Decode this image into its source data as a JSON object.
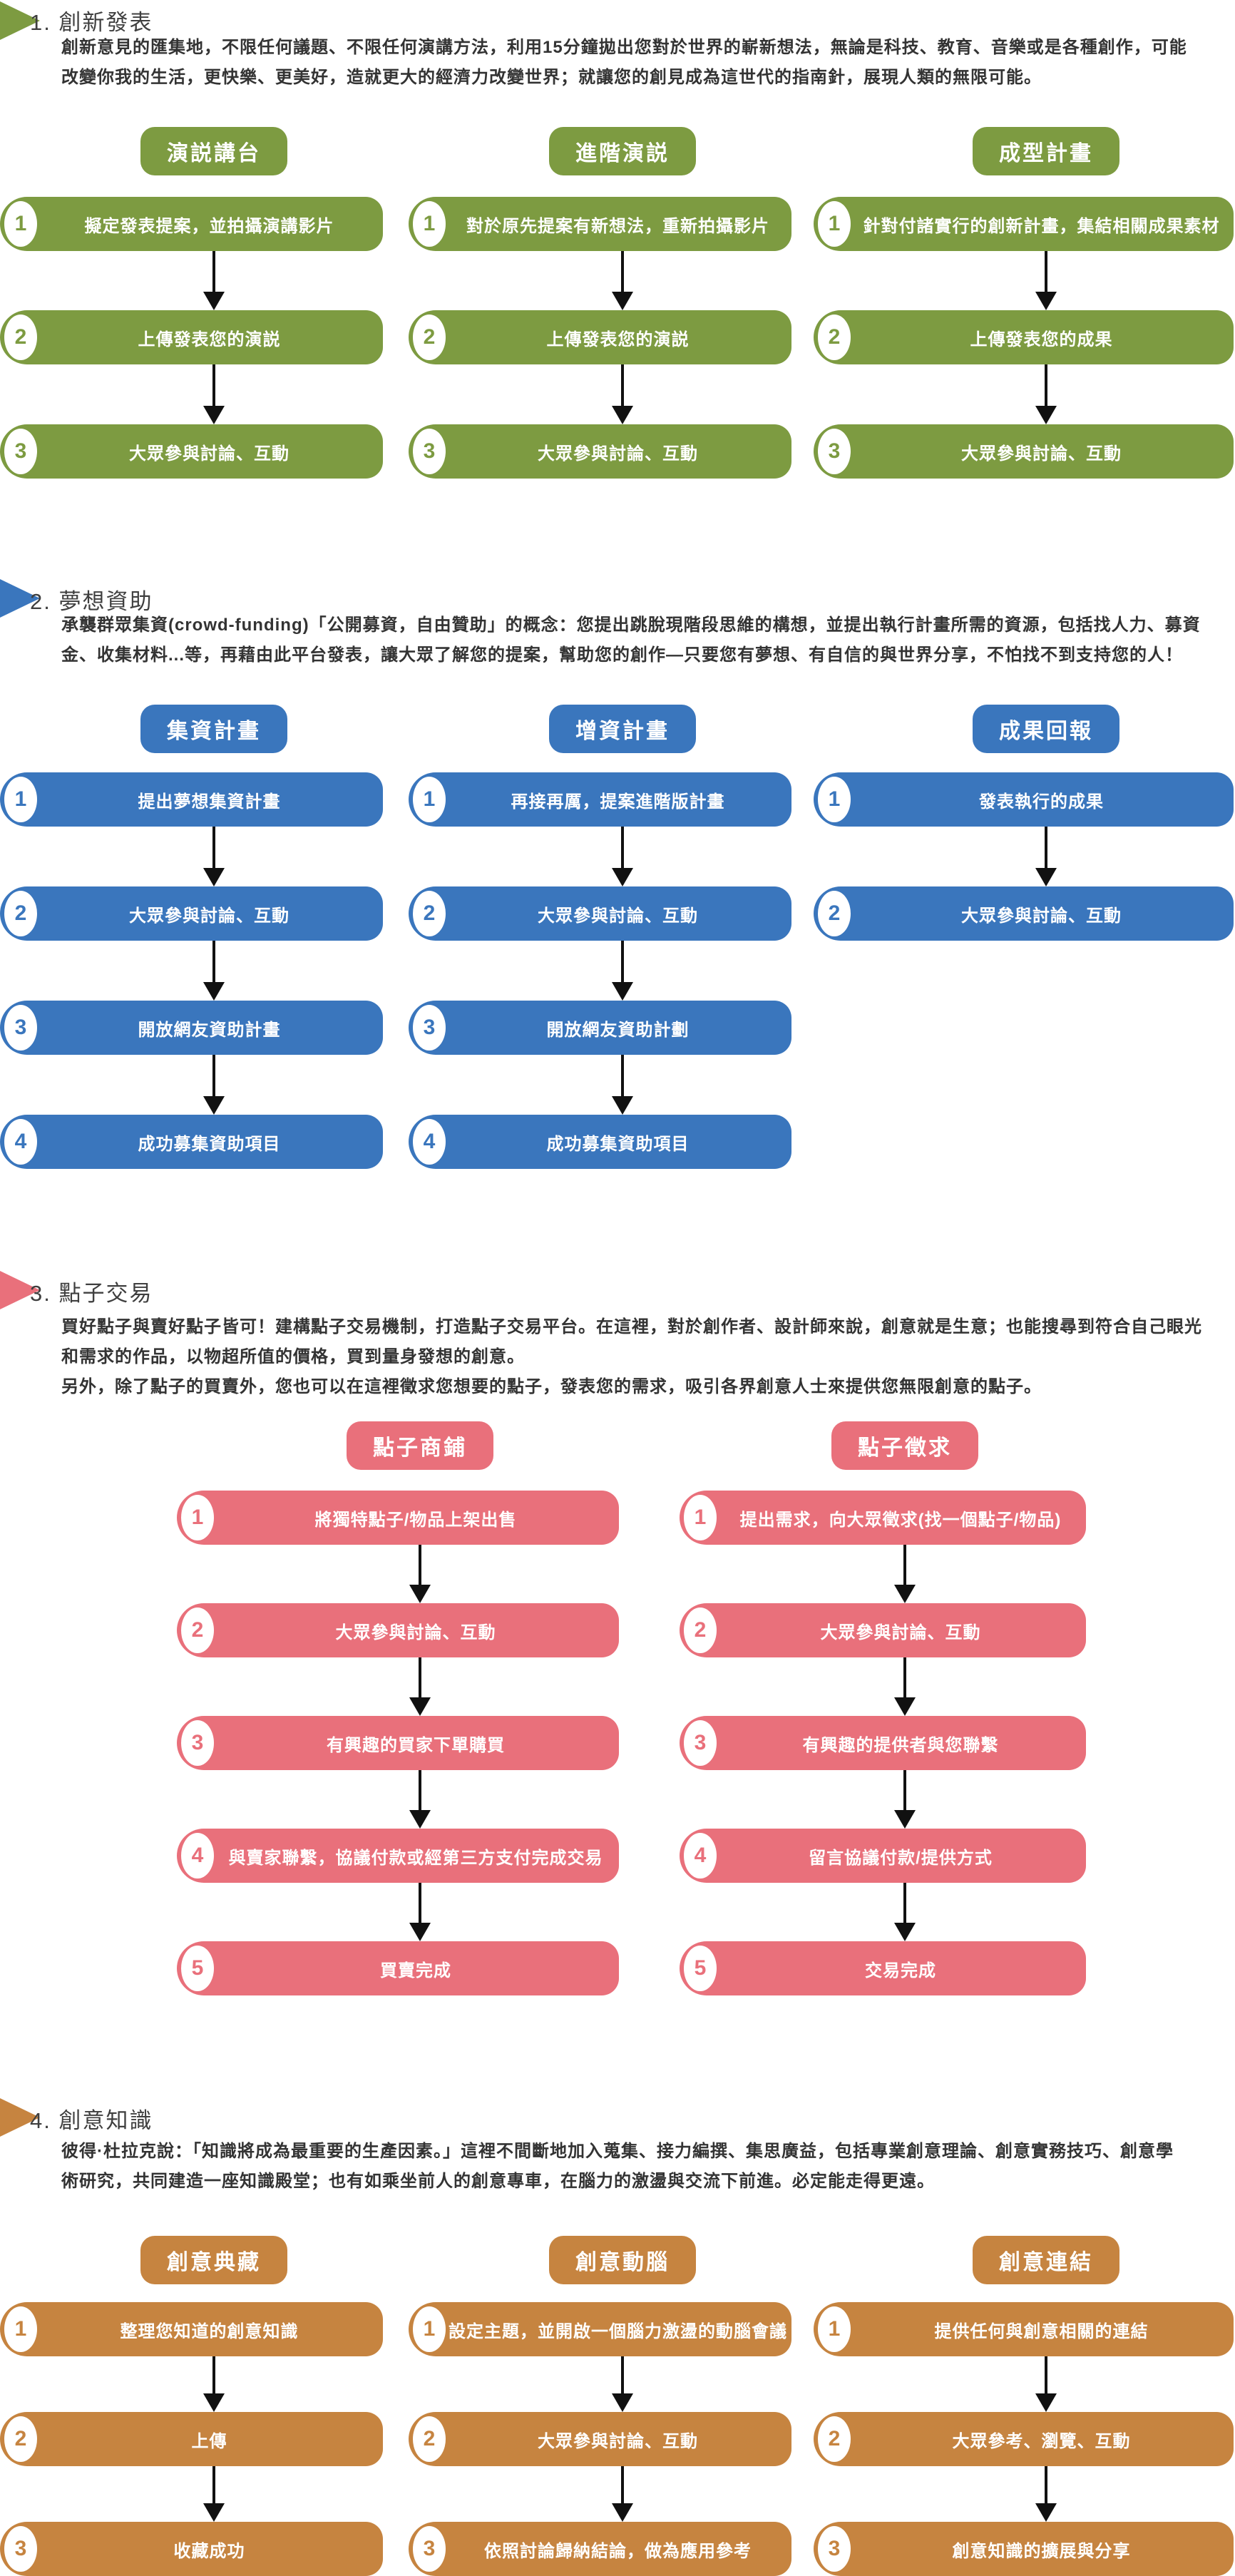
{
  "page": {
    "background": "#ffffff"
  },
  "colors": {
    "arrow": "#111111",
    "body_text": "#333333",
    "step_text": "#ffffff"
  },
  "sections": [
    {
      "title": "1. 創新發表",
      "accent": "#7D9B41",
      "paragraph": [
        "創新意見的匯集地，不限任何議題、不限任何演講方法，利用15分鐘拋出您對於世界的嶄新想法，無論是科技、教育、音樂或是各種創作，可能",
        "改變你我的生活，更快樂、更美好，造就更大的經濟力改變世界；就讓您的創見成為這世代的指南針，展現人類的無限可能。"
      ],
      "columns": [
        {
          "header": "演説講台",
          "steps": [
            {
              "num": "1",
              "text": "擬定發表提案，並拍攝演講影片"
            },
            {
              "num": "2",
              "text": "上傳發表您的演説"
            },
            {
              "num": "3",
              "text": "大眾參與討論、互動"
            }
          ]
        },
        {
          "header": "進階演説",
          "steps": [
            {
              "num": "1",
              "text": "對於原先提案有新想法，重新拍攝影片"
            },
            {
              "num": "2",
              "text": "上傳發表您的演説"
            },
            {
              "num": "3",
              "text": "大眾參與討論、互動"
            }
          ]
        },
        {
          "header": "成型計畫",
          "steps": [
            {
              "num": "1",
              "text": "針對付諸實行的創新計畫，集結相關成果素材"
            },
            {
              "num": "2",
              "text": "上傳發表您的成果"
            },
            {
              "num": "3",
              "text": "大眾參與討論、互動"
            }
          ]
        }
      ]
    },
    {
      "title": "2. 夢想資助",
      "accent": "#3A76BD",
      "paragraph": [
        "承襲群眾集資(crowd-funding)「公開募資，自由贊助」的概念：您提出跳脫現階段思維的構想，並提出執行計畫所需的資源，包括找人力、募資",
        "金、收集材料...等，再藉由此平台發表，讓大眾了解您的提案，幫助您的創作—只要您有夢想、有自信的與世界分享，不怕找不到支持您的人！"
      ],
      "columns": [
        {
          "header": "集資計畫",
          "steps": [
            {
              "num": "1",
              "text": "提出夢想集資計畫"
            },
            {
              "num": "2",
              "text": "大眾參與討論、互動"
            },
            {
              "num": "3",
              "text": "開放網友資助計畫"
            },
            {
              "num": "4",
              "text": "成功募集資助項目"
            }
          ]
        },
        {
          "header": "增資計畫",
          "steps": [
            {
              "num": "1",
              "text": "再接再厲，提案進階版計畫"
            },
            {
              "num": "2",
              "text": "大眾參與討論、互動"
            },
            {
              "num": "3",
              "text": "開放網友資助計劃"
            },
            {
              "num": "4",
              "text": "成功募集資助項目"
            }
          ]
        },
        {
          "header": "成果回報",
          "steps": [
            {
              "num": "1",
              "text": "發表執行的成果"
            },
            {
              "num": "2",
              "text": "大眾參與討論、互動"
            }
          ]
        }
      ]
    },
    {
      "title": "3. 點子交易",
      "accent": "#E9707B",
      "paragraph": [
        "買好點子與賣好點子皆可！建構點子交易機制，打造點子交易平台。在這裡，對於創作者、設計師來說，創意就是生意；也能搜尋到符合自己眼光",
        "和需求的作品，以物超所值的價格，買到量身發想的創意。",
        "另外，除了點子的買賣外，您也可以在這裡徵求您想要的點子，發表您的需求，吸引各界創意人士來提供您無限創意的點子。"
      ],
      "columns": [
        {
          "header": "點子商鋪",
          "steps": [
            {
              "num": "1",
              "text": "將獨特點子/物品上架出售"
            },
            {
              "num": "2",
              "text": "大眾參與討論、互動"
            },
            {
              "num": "3",
              "text": "有興趣的買家下單購買"
            },
            {
              "num": "4",
              "text": "與賣家聯繫，協議付款或經第三方支付完成交易"
            },
            {
              "num": "5",
              "text": "買賣完成"
            }
          ]
        },
        {
          "header": "點子徵求",
          "steps": [
            {
              "num": "1",
              "text": "提出需求，向大眾徵求(找一個點子/物品)"
            },
            {
              "num": "2",
              "text": "大眾參與討論、互動"
            },
            {
              "num": "3",
              "text": "有興趣的提供者與您聯繫"
            },
            {
              "num": "4",
              "text": "留言協議付款/提供方式"
            },
            {
              "num": "5",
              "text": "交易完成"
            }
          ]
        }
      ]
    },
    {
      "title": "4. 創意知識",
      "accent": "#C68440",
      "paragraph": [
        "彼得·杜拉克說：「知識將成為最重要的生產因素。」這裡不間斷地加入蒐集、接力編撰、集思廣益，包括專業創意理論、創意實務技巧、創意學",
        "術研究，共同建造一座知識殿堂；也有如乘坐前人的創意專車，在腦力的激盪與交流下前進。必定能走得更遠。"
      ],
      "columns": [
        {
          "header": "創意典藏",
          "steps": [
            {
              "num": "1",
              "text": "整理您知道的創意知識"
            },
            {
              "num": "2",
              "text": "上傳"
            },
            {
              "num": "3",
              "text": "收藏成功"
            }
          ]
        },
        {
          "header": "創意動腦",
          "steps": [
            {
              "num": "1",
              "text": "設定主題，並開啟一個腦力激盪的動腦會議"
            },
            {
              "num": "2",
              "text": "大眾參與討論、互動"
            },
            {
              "num": "3",
              "text": "依照討論歸納結論，做為應用參考"
            }
          ]
        },
        {
          "header": "創意連結",
          "steps": [
            {
              "num": "1",
              "text": "提供任何與創意相關的連結"
            },
            {
              "num": "2",
              "text": "大眾參考、瀏覽、互動"
            },
            {
              "num": "3",
              "text": "創意知識的擴展與分享"
            }
          ]
        }
      ]
    }
  ]
}
